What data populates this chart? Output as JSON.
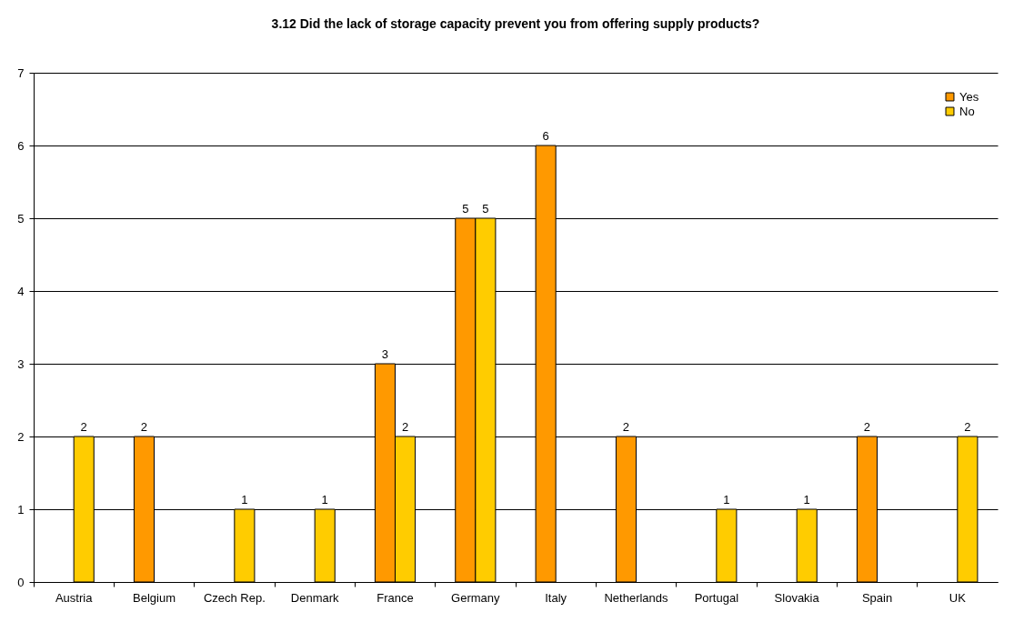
{
  "chart_data": {
    "type": "bar",
    "title": "3.12 Did the lack of storage capacity prevent you from offering supply products?",
    "categories": [
      "Austria",
      "Belgium",
      "Czech Rep.",
      "Denmark",
      "France",
      "Germany",
      "Italy",
      "Netherlands",
      "Portugal",
      "Slovakia",
      "Spain",
      "UK"
    ],
    "series": [
      {
        "name": "Yes",
        "color": "#ff9900",
        "values": [
          null,
          2,
          null,
          null,
          3,
          5,
          6,
          2,
          null,
          null,
          2,
          null
        ]
      },
      {
        "name": "No",
        "color": "#ffcc00",
        "values": [
          2,
          null,
          1,
          1,
          2,
          5,
          null,
          null,
          1,
          1,
          null,
          2
        ]
      }
    ],
    "ylim": [
      0,
      7
    ],
    "yticks": [
      0,
      1,
      2,
      3,
      4,
      5,
      6,
      7
    ],
    "grid": "y",
    "legend": "top right",
    "data_labels": true
  }
}
